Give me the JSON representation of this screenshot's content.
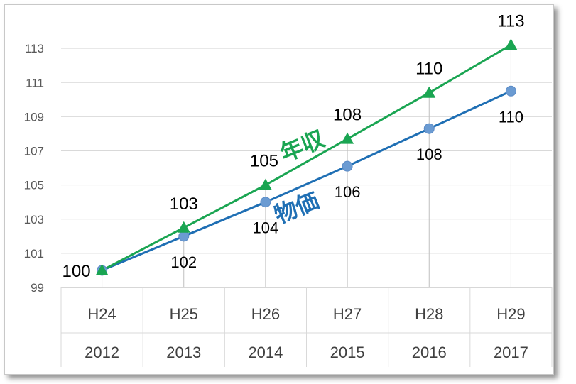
{
  "chart_data": {
    "type": "line",
    "x_era": [
      "H24",
      "H25",
      "H26",
      "H27",
      "H28",
      "H29"
    ],
    "x_year": [
      "2012",
      "2013",
      "2014",
      "2015",
      "2016",
      "2017"
    ],
    "yticks": [
      99,
      101,
      103,
      105,
      107,
      109,
      111,
      113
    ],
    "ylim": [
      99,
      115
    ],
    "grid": true,
    "series": [
      {
        "name": "年収",
        "color": "#1aa552",
        "marker": "triangle",
        "values": [
          100,
          102.5,
          105,
          107.7,
          110.4,
          113.2
        ],
        "labels": [
          "100",
          "103",
          "105",
          "108",
          "110",
          "113"
        ]
      },
      {
        "name": "物価",
        "color": "#1f6fb4",
        "marker": "circle",
        "values": [
          100,
          102,
          104,
          106.1,
          108.3,
          110.5
        ],
        "labels": [
          "",
          "102",
          "104",
          "106",
          "108",
          "110"
        ]
      }
    ]
  }
}
